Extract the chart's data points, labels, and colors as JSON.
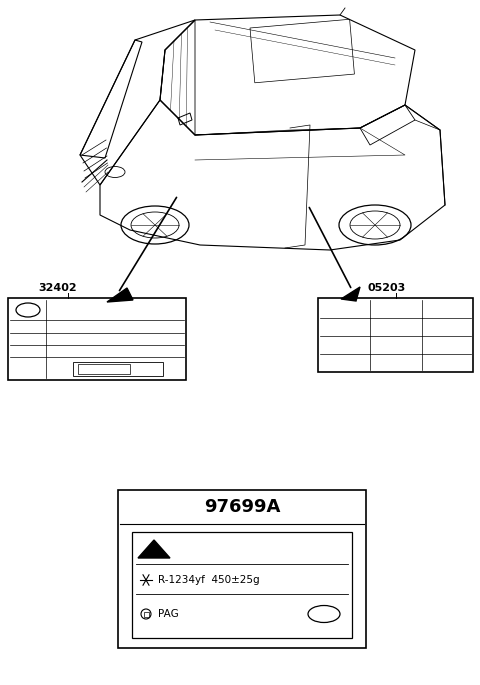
{
  "bg_color": "#ffffff",
  "line_color": "#000000",
  "text_color": "#000000",
  "part_32402_label": "32402",
  "part_05203_label": "05203",
  "part_97699A_label": "97699A",
  "refrigerant_text": "R-1234yf  450±25g",
  "oil_text": "PAG",
  "fig_w": 4.8,
  "fig_h": 6.85,
  "dpi": 100
}
